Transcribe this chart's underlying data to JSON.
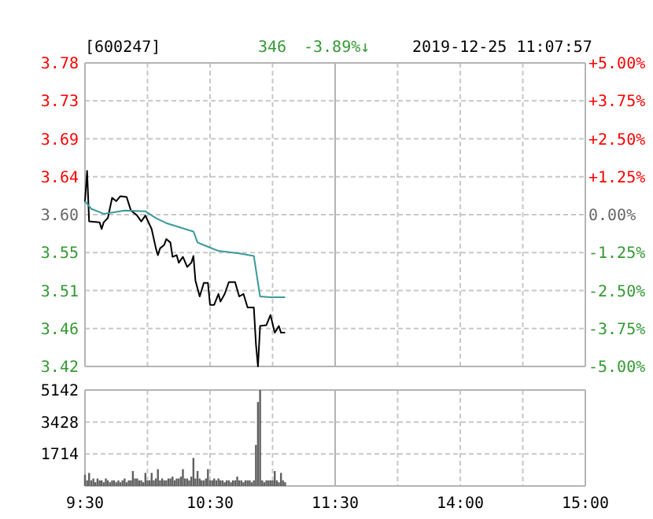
{
  "chart_data": [
    {
      "type": "line",
      "title": "[600247]",
      "annotations": [
        "346",
        "-3.89%↓",
        "2019-12-25 11:07:57"
      ],
      "xlim": [
        9.5,
        11.5
      ],
      "xticks": [
        {
          "value": 9.5,
          "label": null
        },
        {
          "value": 10,
          "label": null
        },
        {
          "value": 10.5,
          "label": null
        },
        {
          "value": 11,
          "label": null
        },
        {
          "value": 11.5,
          "label": null
        }
      ],
      "ylim": [
        3.42,
        3.78
      ],
      "yticks": [
        3.42,
        {
          "value": 3.465,
          "label": "3.46"
        },
        3.51,
        {
          "value": 3.555,
          "label": "3.55"
        },
        {
          "value": 3.6,
          "label": "3.60"
        },
        {
          "value": 3.645,
          "label": "3.64"
        },
        3.69,
        {
          "value": 3.735,
          "label": "3.73"
        },
        3.78
      ],
      "grid": true,
      "tick_labels": "y",
      "series": [
        {
          "color": "#000000",
          "x": [
            9.5,
            9.517,
            9.533,
            9.617,
            9.633,
            9.65,
            9.683,
            9.717,
            9.75,
            9.783,
            9.833,
            9.867,
            9.917,
            9.95,
            9.983,
            10.033,
            10.067,
            10.083,
            10.1,
            10.133,
            10.15,
            10.183,
            10.2,
            10.233,
            10.25,
            10.283,
            10.317,
            10.35,
            10.367,
            10.383,
            10.417,
            10.45,
            10.483,
            10.5,
            10.533,
            10.567,
            10.583,
            10.617,
            10.65,
            10.7,
            10.733,
            10.767,
            10.8,
            10.85,
            10.867,
            10.883,
            10.9,
            10.95,
            10.983,
            11.017,
            11.05,
            11.067,
            11.1
          ],
          "values": [
            3.615,
            3.652,
            3.592,
            3.591,
            3.583,
            3.591,
            3.596,
            3.62,
            3.616,
            3.622,
            3.621,
            3.605,
            3.599,
            3.592,
            3.599,
            3.583,
            3.56,
            3.552,
            3.56,
            3.564,
            3.571,
            3.567,
            3.55,
            3.552,
            3.543,
            3.55,
            3.538,
            3.543,
            3.551,
            3.522,
            3.503,
            3.519,
            3.519,
            3.493,
            3.493,
            3.506,
            3.497,
            3.506,
            3.52,
            3.52,
            3.503,
            3.506,
            3.49,
            3.49,
            3.446,
            3.42,
            3.468,
            3.469,
            3.481,
            3.46,
            3.468,
            3.46,
            3.46
          ]
        },
        {
          "color": "#3a9a9a",
          "x": [
            9.5,
            9.55,
            9.65,
            9.817,
            9.983,
            10.067,
            10.15,
            10.367,
            10.4,
            10.483,
            10.567,
            10.733,
            10.85,
            10.9,
            10.983,
            11.1
          ],
          "values": [
            3.616,
            3.607,
            3.601,
            3.605,
            3.604,
            3.596,
            3.59,
            3.58,
            3.567,
            3.562,
            3.557,
            3.554,
            3.551,
            3.503,
            3.502,
            3.502
          ]
        }
      ]
    },
    {
      "type": "line",
      "xlim": [
        13,
        15
      ],
      "xticks": [
        {
          "value": 13,
          "label": null
        },
        {
          "value": 13.5,
          "label": null
        },
        {
          "value": 14,
          "label": null
        },
        {
          "value": 14.5,
          "label": null
        },
        {
          "value": 15,
          "label": null
        }
      ],
      "y2lim": [
        -5,
        5
      ],
      "y2ticks": [
        {
          "value": -5,
          "label": "-5.00%"
        },
        {
          "value": -3.75,
          "label": "-3.75%"
        },
        {
          "value": -2.5,
          "label": "-2.50%"
        },
        {
          "value": -1.25,
          "label": "-1.25%"
        },
        {
          "value": 0,
          "label": "0.00%"
        },
        {
          "value": 1.25,
          "label": "+1.25%"
        },
        {
          "value": 2.5,
          "label": "+2.50%"
        },
        {
          "value": 3.75,
          "label": "+3.75%"
        },
        {
          "value": 5,
          "label": "+5.00%"
        }
      ],
      "grid": true,
      "tick_labels": "y"
    },
    {
      "type": "bar",
      "color": "#606060",
      "xlim": [
        9.5,
        11.5
      ],
      "xticks": [
        {
          "value": 9.5,
          "label": "9:30"
        },
        {
          "value": 10,
          "label": null
        },
        {
          "value": 10.5,
          "label": "10:30"
        },
        {
          "value": 11,
          "label": null
        },
        {
          "value": 11.5,
          "label": "11:30"
        }
      ],
      "ylim": [
        0,
        5142
      ],
      "yticks": [
        {
          "value": 0,
          "label": null
        },
        1714,
        3428,
        5142
      ],
      "grid": true,
      "x": [
        9.5,
        9.517,
        9.533,
        9.55,
        9.567,
        9.583,
        9.6,
        9.617,
        9.633,
        9.65,
        9.667,
        9.683,
        9.7,
        9.717,
        9.733,
        9.75,
        9.767,
        9.783,
        9.8,
        9.817,
        9.833,
        9.85,
        9.867,
        9.883,
        9.9,
        9.917,
        9.933,
        9.95,
        9.967,
        9.983,
        10,
        10.017,
        10.033,
        10.05,
        10.067,
        10.083,
        10.1,
        10.117,
        10.133,
        10.15,
        10.167,
        10.183,
        10.2,
        10.217,
        10.233,
        10.25,
        10.267,
        10.283,
        10.3,
        10.317,
        10.333,
        10.35,
        10.367,
        10.383,
        10.4,
        10.417,
        10.433,
        10.45,
        10.467,
        10.483,
        10.5,
        10.517,
        10.533,
        10.55,
        10.567,
        10.583,
        10.6,
        10.617,
        10.633,
        10.65,
        10.667,
        10.683,
        10.7,
        10.717,
        10.733,
        10.75,
        10.767,
        10.783,
        10.8,
        10.817,
        10.833,
        10.85,
        10.867,
        10.883,
        10.9,
        10.917,
        10.933,
        10.95,
        10.967,
        10.983,
        11,
        11.017,
        11.033,
        11.05,
        11.067,
        11.083,
        11.1
      ],
      "values": [
        600,
        300,
        700,
        300,
        400,
        200,
        400,
        300,
        300,
        200,
        400,
        300,
        200,
        300,
        300,
        200,
        300,
        200,
        300,
        400,
        200,
        300,
        300,
        800,
        400,
        400,
        300,
        300,
        200,
        700,
        300,
        300,
        700,
        300,
        400,
        900,
        300,
        400,
        300,
        300,
        400,
        400,
        500,
        300,
        400,
        400,
        500,
        900,
        400,
        400,
        300,
        500,
        1500,
        400,
        800,
        400,
        300,
        300,
        400,
        900,
        300,
        300,
        400,
        300,
        400,
        300,
        300,
        200,
        300,
        300,
        200,
        300,
        300,
        500,
        300,
        300,
        200,
        300,
        300,
        300,
        200,
        300,
        2200,
        4500,
        5142,
        300,
        200,
        300,
        300,
        300,
        300,
        800,
        300,
        200,
        700,
        300,
        200
      ]
    },
    {
      "type": "bar",
      "xlim": [
        13,
        15
      ],
      "xticks": [
        {
          "value": 13,
          "label": null
        },
        {
          "value": 13.5,
          "label": null
        },
        {
          "value": 14,
          "label": "14:00"
        },
        {
          "value": 14.5,
          "label": null
        },
        {
          "value": 15,
          "label": "15:00"
        }
      ],
      "ylim": [
        0,
        5142
      ],
      "yticks": [
        {
          "value": 0,
          "label": null
        },
        {
          "value": 1714,
          "label": null
        },
        {
          "value": 3428,
          "label": null
        },
        {
          "value": 5142,
          "label": null
        }
      ],
      "grid": true,
      "tick_labels": "x"
    }
  ]
}
